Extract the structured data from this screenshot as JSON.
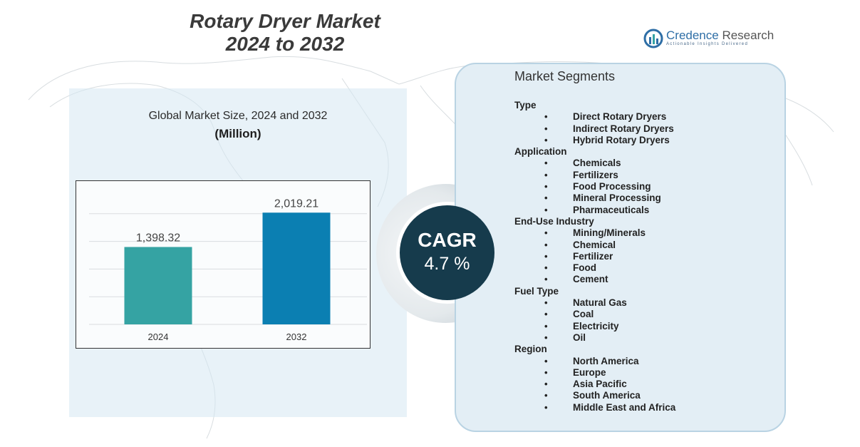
{
  "title": {
    "line1": "Rotary Dryer Market",
    "line2": "2024 to 2032"
  },
  "logo": {
    "name_part1": "Credence",
    "name_part2": " Research",
    "tagline": "Actionable Insights Delivered"
  },
  "chart_header": {
    "heading": "Global Market Size, 2024 and 2032",
    "unit": "(Million)"
  },
  "chart_data": {
    "type": "bar",
    "categories": [
      "2024",
      "2032"
    ],
    "values": [
      1398.32,
      2019.21
    ],
    "value_labels": [
      "1,398.32",
      "2,019.21"
    ],
    "bar_colors": [
      "#35a3a3",
      "#0b7fb2"
    ],
    "title": "Global Market Size, 2024 and 2032",
    "ylabel": "(Million)",
    "ylim": [
      0,
      2100
    ],
    "grid": true
  },
  "cagr": {
    "label": "CAGR",
    "value": "4.7 %"
  },
  "segments": {
    "title": "Market Segments",
    "groups": [
      {
        "label": "Type",
        "items": [
          "Direct Rotary Dryers",
          "Indirect Rotary Dryers",
          "Hybrid Rotary Dryers"
        ]
      },
      {
        "label": "Application",
        "items": [
          "Chemicals",
          "Fertilizers",
          "Food Processing",
          "Mineral Processing",
          "Pharmaceuticals"
        ]
      },
      {
        "label": "End-Use Industry",
        "items": [
          "Mining/Minerals",
          "Chemical",
          "Fertilizer",
          "Food",
          "Cement"
        ]
      },
      {
        "label": "Fuel Type",
        "items": [
          "Natural Gas",
          "Coal",
          "Electricity",
          "Oil"
        ]
      },
      {
        "label": "Region",
        "items": [
          "North America",
          "Europe",
          "Asia Pacific",
          "South America",
          "Middle East and Africa"
        ]
      }
    ],
    "bullet": "•"
  },
  "colors": {
    "panel_bg": "#e3eef5",
    "cagr_bg": "#163b4c",
    "title_text": "#3a3a3a",
    "logo_blue": "#2e6ea6"
  }
}
